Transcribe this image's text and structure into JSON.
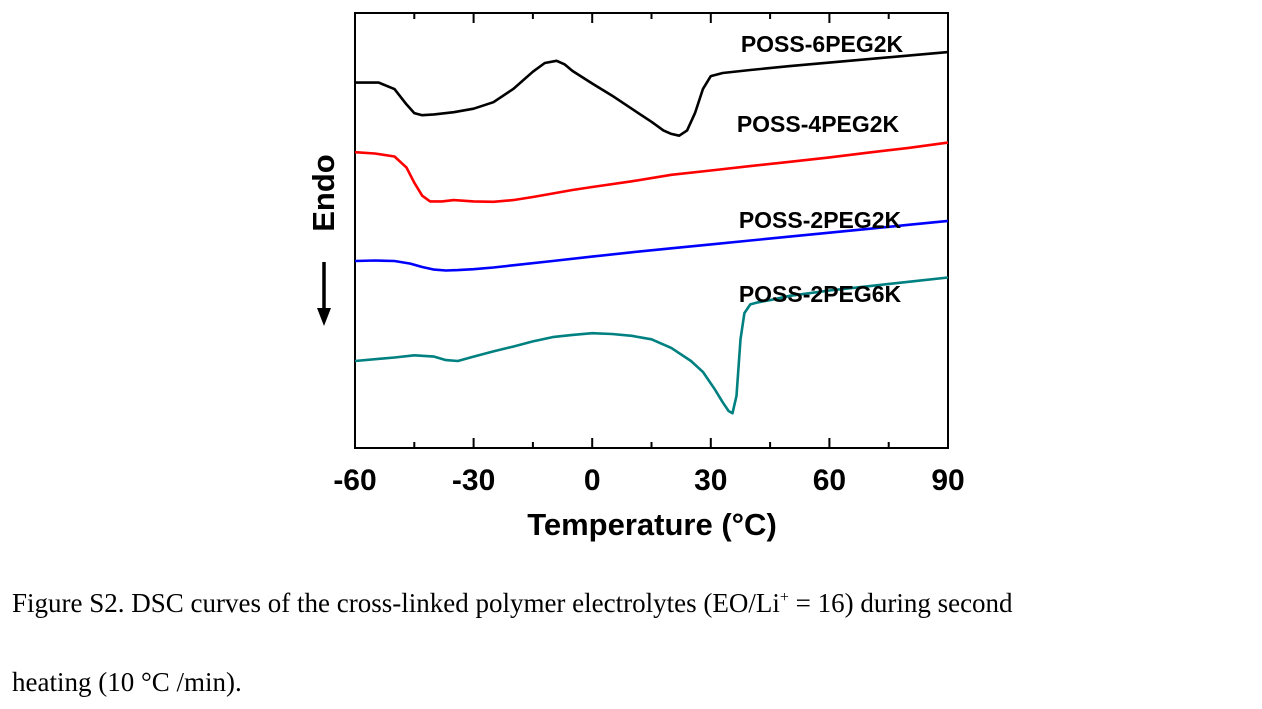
{
  "chart_data": {
    "type": "line",
    "xlabel": "Temperature (°C)",
    "ylabel": "Endo",
    "ylabel_arrow": "down",
    "xlim": [
      -60,
      90
    ],
    "xticks": [
      -60,
      -30,
      0,
      30,
      60,
      90
    ],
    "xtick_labels": [
      "-60",
      "-30",
      "0",
      "30",
      "60",
      "90"
    ],
    "y_ticks_shown": false,
    "grid": false,
    "legend": "inline labels",
    "series": [
      {
        "name": "POSS-6PEG2K",
        "color": "#000000",
        "x": [
          -60,
          -54,
          -50,
          -47,
          -45,
          -43,
          -40,
          -35,
          -30,
          -25,
          -20,
          -15,
          -12,
          -9,
          -7,
          -5,
          0,
          5,
          10,
          15,
          18,
          20,
          22,
          24,
          26,
          28,
          30,
          33,
          40,
          50,
          60,
          70,
          80,
          90
        ],
        "y": [
          0.84,
          0.84,
          0.825,
          0.79,
          0.77,
          0.765,
          0.767,
          0.772,
          0.78,
          0.795,
          0.825,
          0.865,
          0.885,
          0.89,
          0.882,
          0.867,
          0.838,
          0.81,
          0.78,
          0.75,
          0.73,
          0.722,
          0.718,
          0.73,
          0.77,
          0.825,
          0.855,
          0.862,
          0.869,
          0.878,
          0.886,
          0.894,
          0.902,
          0.91
        ]
      },
      {
        "name": "POSS-4PEG2K",
        "color": "#ff0000",
        "x": [
          -60,
          -55,
          -50,
          -47,
          -45,
          -43,
          -41,
          -38,
          -35,
          -30,
          -25,
          -20,
          -15,
          -10,
          -5,
          0,
          10,
          20,
          30,
          40,
          50,
          60,
          70,
          80,
          90
        ],
        "y": [
          0.68,
          0.677,
          0.67,
          0.645,
          0.61,
          0.58,
          0.567,
          0.567,
          0.57,
          0.567,
          0.566,
          0.57,
          0.577,
          0.585,
          0.593,
          0.6,
          0.613,
          0.628,
          0.638,
          0.648,
          0.658,
          0.668,
          0.679,
          0.69,
          0.702
        ]
      },
      {
        "name": "POSS-2PEG2K",
        "color": "#0000ff",
        "x": [
          -60,
          -55,
          -50,
          -46,
          -43,
          -40,
          -37,
          -34,
          -30,
          -25,
          -20,
          -10,
          0,
          10,
          20,
          30,
          40,
          50,
          60,
          70,
          80,
          90
        ],
        "y": [
          0.43,
          0.431,
          0.43,
          0.424,
          0.416,
          0.41,
          0.408,
          0.409,
          0.411,
          0.415,
          0.42,
          0.43,
          0.44,
          0.45,
          0.459,
          0.468,
          0.477,
          0.486,
          0.495,
          0.504,
          0.513,
          0.522
        ]
      },
      {
        "name": "POSS-2PEG6K",
        "color": "#008080",
        "x": [
          -60,
          -50,
          -45,
          -40,
          -37,
          -34,
          -30,
          -25,
          -20,
          -15,
          -10,
          -5,
          0,
          5,
          10,
          15,
          20,
          25,
          28,
          31,
          33,
          34.5,
          35.5,
          36.5,
          37.5,
          38.5,
          40,
          42,
          45,
          50,
          60,
          70,
          80,
          90
        ],
        "y": [
          0.2,
          0.208,
          0.213,
          0.21,
          0.202,
          0.2,
          0.21,
          0.222,
          0.233,
          0.245,
          0.255,
          0.26,
          0.264,
          0.262,
          0.258,
          0.25,
          0.23,
          0.2,
          0.175,
          0.135,
          0.105,
          0.085,
          0.08,
          0.12,
          0.25,
          0.31,
          0.33,
          0.335,
          0.34,
          0.35,
          0.362,
          0.372,
          0.382,
          0.392
        ]
      }
    ]
  },
  "caption": {
    "line1_before": "Figure S2. DSC curves of the cross-linked polymer electrolytes (EO/Li",
    "line1_sup": "+",
    "line1_after": " = 16) during second",
    "line2": "heating (10 °C /min)."
  }
}
